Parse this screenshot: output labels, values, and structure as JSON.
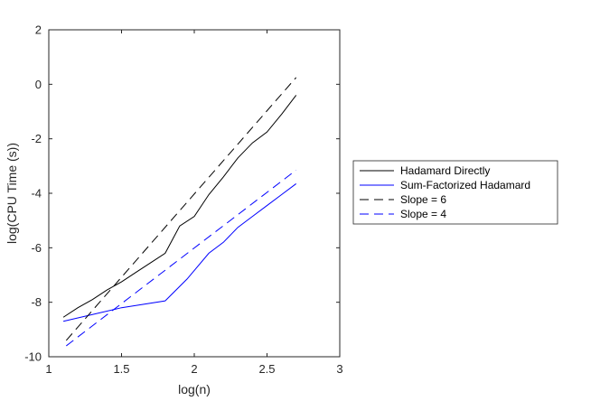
{
  "chart_data": {
    "type": "line",
    "xlabel": "log(n)",
    "ylabel": "log(CPU Time (s))",
    "xlim": [
      1,
      3
    ],
    "ylim": [
      -10,
      2
    ],
    "xticks": [
      1,
      1.5,
      2,
      2.5,
      3
    ],
    "xtick_labels": [
      "1",
      "1.5",
      "2",
      "2.5",
      "3"
    ],
    "yticks": [
      -10,
      -8,
      -6,
      -4,
      -2,
      0,
      2
    ],
    "ytick_labels": [
      "-10",
      "-8",
      "-6",
      "-4",
      "-2",
      "0",
      "2"
    ],
    "grid": false,
    "legend_position": "outside-right",
    "series": [
      {
        "name": "Hadamard Directly",
        "color": "#000000",
        "dash": "solid",
        "x": [
          1.1,
          1.2,
          1.3,
          1.4,
          1.5,
          1.6,
          1.7,
          1.8,
          1.9,
          2.0,
          2.1,
          2.2,
          2.3,
          2.4,
          2.5,
          2.6,
          2.7
        ],
        "y": [
          -8.55,
          -8.2,
          -7.9,
          -7.55,
          -7.25,
          -6.9,
          -6.55,
          -6.2,
          -5.2,
          -4.85,
          -4.05,
          -3.4,
          -2.7,
          -2.15,
          -1.75,
          -1.1,
          -0.4
        ]
      },
      {
        "name": "Sum-Factorized Hadamard",
        "color": "#0000ff",
        "dash": "solid",
        "x": [
          1.1,
          1.3,
          1.5,
          1.8,
          1.95,
          2.1,
          2.2,
          2.3,
          2.4,
          2.5,
          2.6,
          2.7
        ],
        "y": [
          -8.7,
          -8.45,
          -8.2,
          -7.95,
          -7.15,
          -6.2,
          -5.8,
          -5.25,
          -4.85,
          -4.45,
          -4.05,
          -3.65
        ]
      },
      {
        "name": "Slope = 6",
        "color": "#000000",
        "dash": "dashed",
        "x": [
          1.12,
          2.7
        ],
        "y": [
          -9.4,
          0.25
        ]
      },
      {
        "name": "Slope = 4",
        "color": "#0000ff",
        "dash": "dashed",
        "x": [
          1.12,
          2.7
        ],
        "y": [
          -9.6,
          -3.15
        ]
      }
    ]
  }
}
